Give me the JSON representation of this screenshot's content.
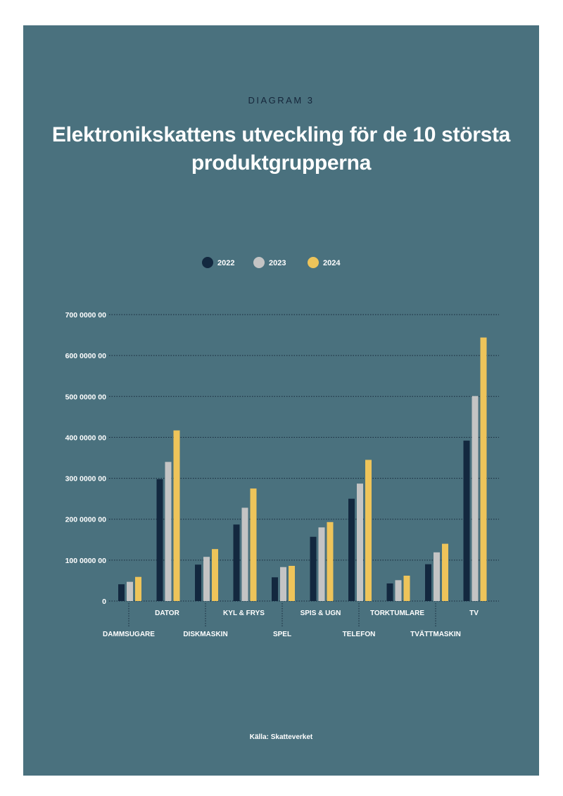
{
  "header": {
    "kicker": "DIAGRAM 3",
    "title": "Elektronikskattens utveckling för de 10 största produktgrupperna"
  },
  "source": "Källa: Skatteverket",
  "colors": {
    "background": "#4a717e",
    "series_2022": "#13283f",
    "series_2023": "#c4c4c4",
    "series_2024": "#eec45a",
    "gridline": "#16283a"
  },
  "chart_data": {
    "type": "bar",
    "categories": [
      "DAMMSUGARE",
      "DATOR",
      "DISKMASKIN",
      "KYL & FRYS",
      "SPEL",
      "SPIS & UGN",
      "TELEFON",
      "TORKTUMLARE",
      "TVÄTTMASKIN",
      "TV"
    ],
    "series": [
      {
        "name": "2022",
        "color": "#13283f",
        "values": [
          41000000,
          298000000,
          89000000,
          187000000,
          58000000,
          157000000,
          250000000,
          43000000,
          90000000,
          392000000
        ]
      },
      {
        "name": "2023",
        "color": "#c4c4c4",
        "values": [
          47000000,
          340000000,
          108000000,
          228000000,
          83000000,
          180000000,
          287000000,
          51000000,
          119000000,
          501000000
        ]
      },
      {
        "name": "2024",
        "color": "#eec45a",
        "values": [
          59000000,
          417000000,
          127000000,
          275000000,
          86000000,
          193000000,
          345000000,
          62000000,
          140000000,
          644000000
        ]
      }
    ],
    "yticks": [
      {
        "value": 0,
        "label": "0"
      },
      {
        "value": 100000000,
        "label": "100 0000 00"
      },
      {
        "value": 200000000,
        "label": "200 0000 00"
      },
      {
        "value": 300000000,
        "label": "300 0000 00"
      },
      {
        "value": 400000000,
        "label": "400 0000 00"
      },
      {
        "value": 500000000,
        "label": "500 0000 00"
      },
      {
        "value": 600000000,
        "label": "600 0000 00"
      },
      {
        "value": 700000000,
        "label": "700 0000 00"
      }
    ],
    "ylim": [
      0,
      700000000
    ],
    "grid": true,
    "grid_style": "dotted",
    "legend_position": "top-center"
  }
}
